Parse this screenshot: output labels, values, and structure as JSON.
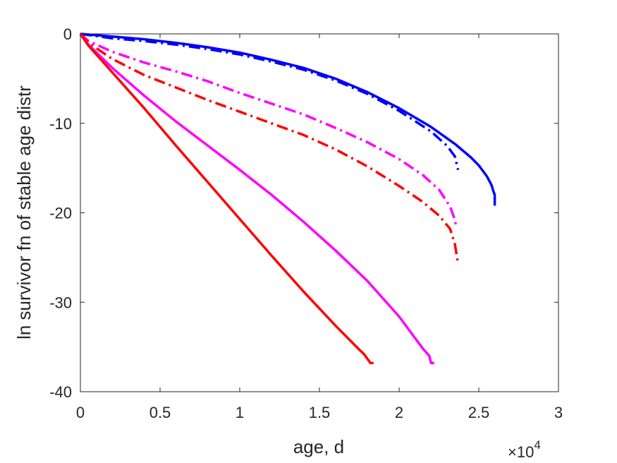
{
  "chart_data": {
    "type": "line",
    "xlabel": "age, d",
    "ylabel": "ln survivor fn of stable age distr",
    "x_multiplier_label": {
      "base": "×10",
      "exponent": "4"
    },
    "xlim": [
      0,
      30000
    ],
    "ylim": [
      -40,
      0
    ],
    "x_ticks": [
      0,
      5000,
      10000,
      15000,
      20000,
      25000,
      30000
    ],
    "x_tick_labels": [
      "0",
      "0.5",
      "1",
      "1.5",
      "2",
      "2.5",
      "3"
    ],
    "y_ticks": [
      0,
      -10,
      -20,
      -30,
      -40
    ],
    "y_tick_labels": [
      "0",
      "-10",
      "-20",
      "-30",
      "-40"
    ],
    "grid": false,
    "legend": "none",
    "series": [
      {
        "color": "#0000ff",
        "style": "solid",
        "x": [
          0,
          2000,
          4000,
          6000,
          8000,
          10000,
          12000,
          14000,
          16000,
          18000,
          20000,
          22000,
          23500,
          24500,
          25000,
          25500,
          25800,
          25900,
          26000,
          26000
        ],
        "y": [
          0,
          -0.3,
          -0.6,
          -1.0,
          -1.5,
          -2.1,
          -2.9,
          -3.8,
          -5.0,
          -6.5,
          -8.3,
          -10.4,
          -12.3,
          -13.8,
          -14.7,
          -15.9,
          -16.9,
          -17.5,
          -18.0,
          -19.2
        ]
      },
      {
        "color": "#0000ff",
        "style": "dashdot",
        "x": [
          0,
          2000,
          4000,
          6000,
          8000,
          10000,
          12000,
          14000,
          16000,
          18000,
          20000,
          22000,
          23000,
          23500,
          23700
        ],
        "y": [
          0,
          -0.5,
          -0.8,
          -1.2,
          -1.7,
          -2.3,
          -3.1,
          -4.0,
          -5.2,
          -6.7,
          -8.6,
          -10.9,
          -12.5,
          -13.7,
          -15.2
        ]
      },
      {
        "color": "#ff00ff",
        "style": "dashdot",
        "x": [
          0,
          500,
          2000,
          4000,
          6000,
          8000,
          10000,
          12000,
          14000,
          16000,
          18000,
          20000,
          21500,
          22500,
          23200,
          23500,
          23600
        ],
        "y": [
          0,
          -0.8,
          -2.0,
          -3.2,
          -4.2,
          -5.3,
          -6.6,
          -7.8,
          -9.0,
          -10.5,
          -12.1,
          -14.0,
          -15.8,
          -17.4,
          -19.3,
          -20.8,
          -21.7
        ]
      },
      {
        "color": "#ff0000",
        "style": "dashdot",
        "x": [
          0,
          500,
          2000,
          4000,
          6000,
          8000,
          10000,
          12000,
          14000,
          16000,
          18000,
          20000,
          21500,
          22500,
          23200,
          23500,
          23700
        ],
        "y": [
          0,
          -1.0,
          -2.8,
          -4.6,
          -6.0,
          -7.4,
          -8.7,
          -10.0,
          -11.3,
          -12.9,
          -14.8,
          -17.0,
          -18.8,
          -20.3,
          -21.8,
          -23.5,
          -25.7
        ]
      },
      {
        "color": "#ff00ff",
        "style": "solid",
        "x": [
          0,
          500,
          2000,
          4000,
          6000,
          8000,
          10000,
          12000,
          14000,
          16000,
          18000,
          20000,
          21500,
          21700,
          21800,
          21900,
          22000,
          22200
        ],
        "y": [
          0,
          -1.2,
          -3.8,
          -6.9,
          -9.8,
          -12.5,
          -15.2,
          -18.0,
          -21.0,
          -24.2,
          -27.6,
          -31.6,
          -35.2,
          -35.6,
          -35.8,
          -36.0,
          -36.8,
          -36.8
        ]
      },
      {
        "color": "#ff0000",
        "style": "solid",
        "x": [
          0,
          500,
          2000,
          4000,
          6000,
          8000,
          10000,
          12000,
          14000,
          16000,
          17000,
          17500,
          17800,
          18000,
          18200,
          18400
        ],
        "y": [
          0,
          -1.3,
          -4.3,
          -8.3,
          -12.5,
          -16.6,
          -20.7,
          -24.8,
          -28.8,
          -32.6,
          -34.4,
          -35.3,
          -35.8,
          -36.3,
          -36.8,
          -36.8
        ]
      }
    ]
  }
}
